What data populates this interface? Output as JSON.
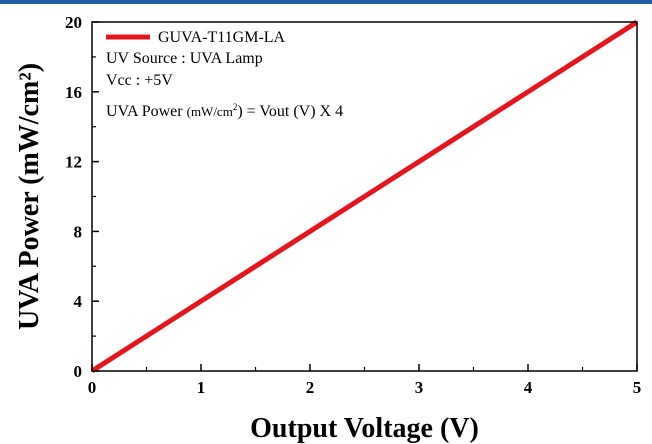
{
  "chart_data": {
    "type": "line",
    "title": "",
    "xlabel": "Output Voltage (V)",
    "ylabel": "UVA Power (mW/cm²)",
    "xlim": [
      0,
      5
    ],
    "ylim": [
      0,
      20
    ],
    "xticks": [
      "0",
      "1",
      "2",
      "3",
      "4",
      "5"
    ],
    "yticks": [
      "0",
      "4",
      "8",
      "12",
      "16",
      "20"
    ],
    "grid": false,
    "legend_position": "top-left",
    "series": [
      {
        "name": "GUVA-T11GM-LA",
        "color": "#e8141c",
        "x": [
          0,
          1,
          2,
          3,
          4,
          5
        ],
        "y": [
          0,
          4,
          8,
          12,
          16,
          20
        ]
      }
    ],
    "annotations": {
      "line1": "UV Source : UVA Lamp",
      "line2": "Vcc : +5V",
      "formula_prefix": "UVA Power",
      "formula_unit": "(mW/cm",
      "formula_sup": "2",
      "formula_rest": ") = Vout (V)  X 4"
    }
  }
}
